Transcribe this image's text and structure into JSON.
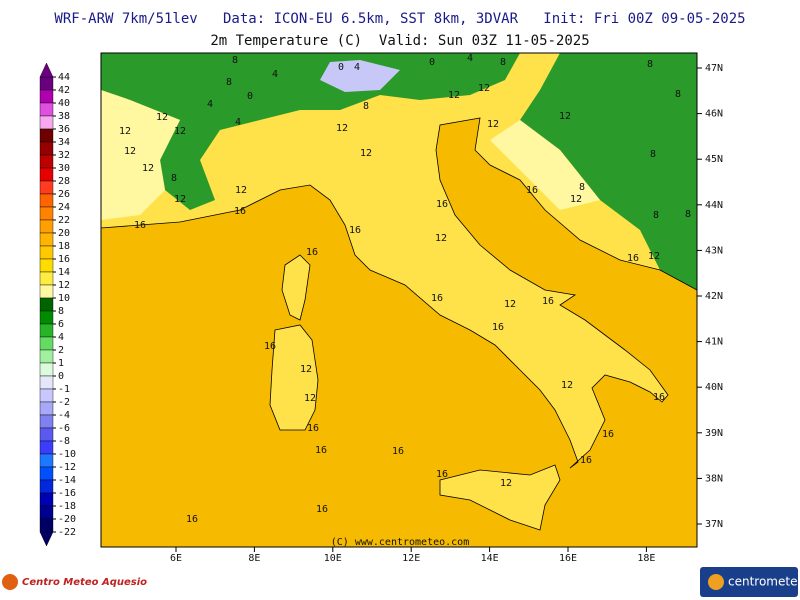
{
  "header": {
    "line1": "WRF-ARW 7km/51lev   Data: ICON-EU 6.5km, SST 8km, 3DVAR   Init: Fri 00Z 09-05-2025",
    "line2": "2m Temperature (C)  Valid: Sun 03Z 11-05-2025"
  },
  "map": {
    "lon_ticks": [
      {
        "value": 6,
        "label": "6E"
      },
      {
        "value": 8,
        "label": "8E"
      },
      {
        "value": 10,
        "label": "10E"
      },
      {
        "value": 12,
        "label": "12E"
      },
      {
        "value": 14,
        "label": "14E"
      },
      {
        "value": 16,
        "label": "16E"
      },
      {
        "value": 18,
        "label": "18E"
      }
    ],
    "lat_ticks": [
      {
        "value": 37,
        "label": "37N"
      },
      {
        "value": 38,
        "label": "38N"
      },
      {
        "value": 39,
        "label": "39N"
      },
      {
        "value": 40,
        "label": "40N"
      },
      {
        "value": 41,
        "label": "41N"
      },
      {
        "value": 42,
        "label": "42N"
      },
      {
        "value": 43,
        "label": "43N"
      },
      {
        "value": 44,
        "label": "44N"
      },
      {
        "value": 45,
        "label": "45N"
      },
      {
        "value": 46,
        "label": "46N"
      },
      {
        "value": 47,
        "label": "47N"
      }
    ],
    "contour_labels": [
      "8",
      "4",
      "0",
      "4",
      "0",
      "4",
      "8",
      "8",
      "8",
      "8",
      "4",
      "0",
      "12",
      "12",
      "12",
      "12",
      "4",
      "8",
      "12",
      "12",
      "12",
      "12",
      "8",
      "12",
      "12",
      "12",
      "8",
      "12",
      "12",
      "16",
      "16",
      "16",
      "16",
      "8",
      "12",
      "8",
      "8",
      "16",
      "16",
      "12",
      "12",
      "16",
      "16",
      "12",
      "16",
      "16",
      "16",
      "12",
      "12",
      "12",
      "16",
      "16",
      "16",
      "16",
      "16",
      "16",
      "16",
      "12",
      "16",
      "16"
    ],
    "credit": "(C) www.centrometeo.com"
  },
  "colorbar": {
    "levels": [
      44,
      42,
      40,
      38,
      36,
      34,
      32,
      30,
      28,
      26,
      24,
      22,
      20,
      18,
      16,
      14,
      12,
      10,
      8,
      6,
      4,
      2,
      1,
      0,
      -1,
      -2,
      -4,
      -6,
      -8,
      -10,
      -12,
      -14,
      -16,
      -18,
      -20,
      -22
    ],
    "colors": [
      "#6a0080",
      "#b000b0",
      "#e050e0",
      "#f8a8f0",
      "#6e0000",
      "#960000",
      "#be0000",
      "#e60000",
      "#ff3c1e",
      "#ff6400",
      "#ff8200",
      "#ffa000",
      "#ffb400",
      "#ffc800",
      "#ffdc00",
      "#ffec40",
      "#fff8a0",
      "#006400",
      "#008c00",
      "#28b428",
      "#64dc64",
      "#a0f0a0",
      "#dcfadc",
      "#e6e6fa",
      "#c8c8ff",
      "#a8a8f8",
      "#8080f0",
      "#5a5af0",
      "#3c3cff",
      "#1e78ff",
      "#0050ff",
      "#0028dc",
      "#0000b4",
      "#000090",
      "#000064"
    ]
  },
  "footer": {
    "left_logo": "Centro Meteo Aquesio",
    "right_logo": "centrometeo"
  }
}
